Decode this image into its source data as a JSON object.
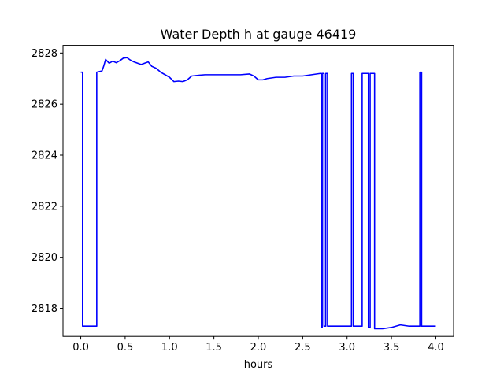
{
  "chart_data": {
    "type": "line",
    "title": "Water Depth h at gauge 46419",
    "xlabel": "hours",
    "ylabel": "",
    "xlim": [
      -0.2,
      4.2
    ],
    "ylim": [
      2816.9,
      2828.3
    ],
    "xticks": [
      0.0,
      0.5,
      1.0,
      1.5,
      2.0,
      2.5,
      3.0,
      3.5,
      4.0
    ],
    "xtick_labels": [
      "0.0",
      "0.5",
      "1.0",
      "1.5",
      "2.0",
      "2.5",
      "3.0",
      "3.5",
      "4.0"
    ],
    "yticks": [
      2818,
      2820,
      2822,
      2824,
      2826,
      2828
    ],
    "ytick_labels": [
      "2818",
      "2820",
      "2822",
      "2824",
      "2826",
      "2828"
    ],
    "grid": false,
    "series": [
      {
        "color": "#0000ff",
        "x": [
          0.0,
          0.02,
          0.02,
          0.18,
          0.18,
          0.24,
          0.26,
          0.28,
          0.32,
          0.36,
          0.4,
          0.44,
          0.48,
          0.52,
          0.56,
          0.6,
          0.64,
          0.68,
          0.72,
          0.76,
          0.8,
          0.85,
          0.9,
          0.95,
          1.0,
          1.05,
          1.1,
          1.15,
          1.2,
          1.25,
          1.3,
          1.4,
          1.5,
          1.6,
          1.7,
          1.8,
          1.9,
          1.95,
          2.0,
          2.05,
          2.1,
          2.2,
          2.3,
          2.4,
          2.5,
          2.6,
          2.7,
          2.71,
          2.71,
          2.72,
          2.72,
          2.74,
          2.74,
          2.76,
          2.76,
          2.78,
          2.78,
          2.8,
          2.8,
          3.05,
          3.05,
          3.07,
          3.07,
          3.17,
          3.17,
          3.24,
          3.24,
          3.26,
          3.26,
          3.31,
          3.31,
          3.4,
          3.5,
          3.6,
          3.7,
          3.82,
          3.82,
          3.84,
          3.84,
          4.0
        ],
        "y": [
          2827.25,
          2827.25,
          2817.3,
          2817.3,
          2827.25,
          2827.3,
          2827.5,
          2827.75,
          2827.6,
          2827.68,
          2827.62,
          2827.7,
          2827.8,
          2827.82,
          2827.72,
          2827.65,
          2827.6,
          2827.55,
          2827.6,
          2827.65,
          2827.48,
          2827.4,
          2827.25,
          2827.15,
          2827.05,
          2826.88,
          2826.9,
          2826.88,
          2826.95,
          2827.1,
          2827.12,
          2827.15,
          2827.15,
          2827.15,
          2827.15,
          2827.15,
          2827.18,
          2827.1,
          2826.95,
          2826.95,
          2827.0,
          2827.05,
          2827.05,
          2827.1,
          2827.1,
          2827.15,
          2827.2,
          2827.2,
          2817.25,
          2817.25,
          2827.2,
          2827.2,
          2817.3,
          2817.3,
          2827.2,
          2827.2,
          2817.3,
          2817.3,
          2817.3,
          2817.3,
          2827.2,
          2827.2,
          2817.3,
          2817.3,
          2827.2,
          2827.2,
          2817.25,
          2817.25,
          2827.2,
          2827.2,
          2817.2,
          2817.2,
          2817.25,
          2817.35,
          2817.3,
          2817.3,
          2827.25,
          2827.25,
          2817.3,
          2817.3
        ]
      }
    ]
  }
}
